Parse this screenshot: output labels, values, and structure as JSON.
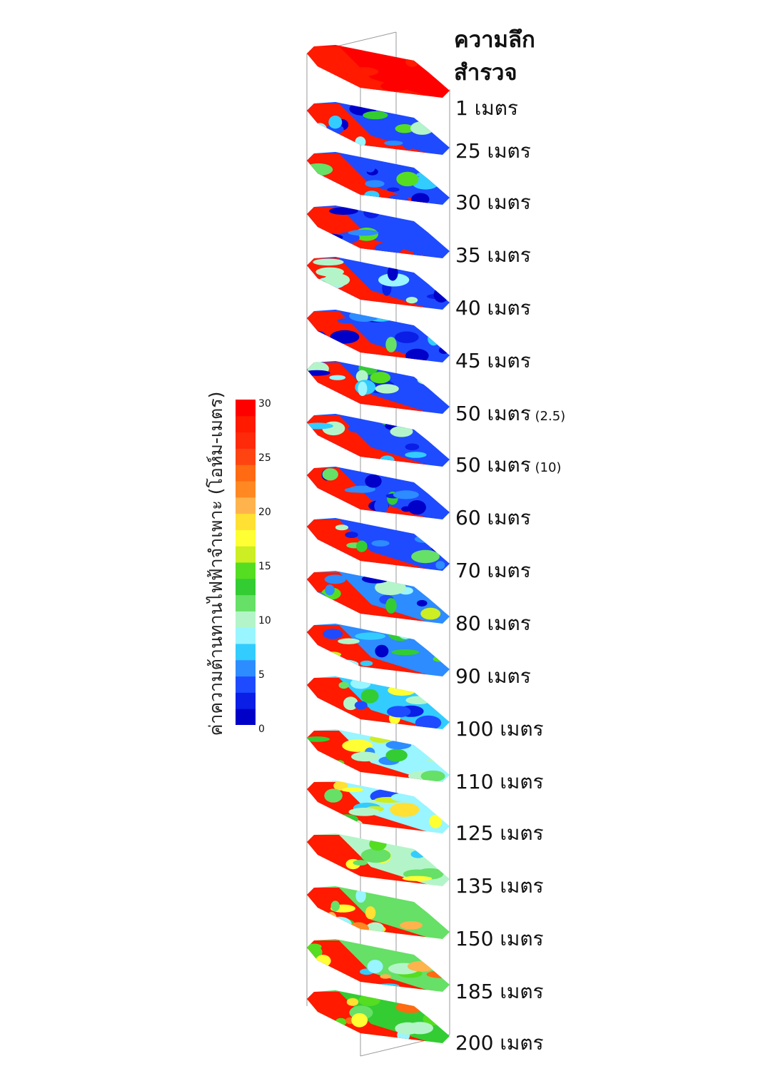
{
  "title_lines": [
    "ความลึก",
    "สำรวจ"
  ],
  "depth_labels": [
    {
      "text": "1 เมตร",
      "note": ""
    },
    {
      "text": "25 เมตร",
      "note": ""
    },
    {
      "text": "30 เมตร",
      "note": ""
    },
    {
      "text": "35 เมตร",
      "note": ""
    },
    {
      "text": "40 เมตร",
      "note": ""
    },
    {
      "text": "45 เมตร",
      "note": ""
    },
    {
      "text": "50 เมตร",
      "note": "(2.5)"
    },
    {
      "text": "50 เมตร",
      "note": "(10)"
    },
    {
      "text": "60 เมตร",
      "note": ""
    },
    {
      "text": "70 เมตร",
      "note": ""
    },
    {
      "text": "80 เมตร",
      "note": ""
    },
    {
      "text": "90 เมตร",
      "note": ""
    },
    {
      "text": "100 เมตร",
      "note": ""
    },
    {
      "text": "110 เมตร",
      "note": ""
    },
    {
      "text": "125 เมตร",
      "note": ""
    },
    {
      "text": "135 เมตร",
      "note": ""
    },
    {
      "text": "150 เมตร",
      "note": ""
    },
    {
      "text": "185 เมตร",
      "note": ""
    },
    {
      "text": "200 เมตร",
      "note": ""
    }
  ],
  "legend": {
    "title": "ค่าความต้านทานไฟฟ้าจำเพาะ (โอห์ม-เมตร)",
    "ticks": [
      "30",
      "25",
      "20",
      "15",
      "10",
      "5",
      "0"
    ],
    "min": 0,
    "max": 30,
    "tick_values": [
      30,
      25,
      20,
      15,
      10,
      5,
      0
    ],
    "colors": [
      "#0000c8",
      "#0a1ee6",
      "#1e4bff",
      "#2d8cff",
      "#33ccff",
      "#99f5ff",
      "#b3f5c8",
      "#66e066",
      "#33cc33",
      "#55dd22",
      "#ccee22",
      "#ffff33",
      "#ffe033",
      "#ffb34d",
      "#ff8822",
      "#ff6a12",
      "#ff4411",
      "#ff2a0a",
      "#ff1a00",
      "#ff0000"
    ]
  }
}
